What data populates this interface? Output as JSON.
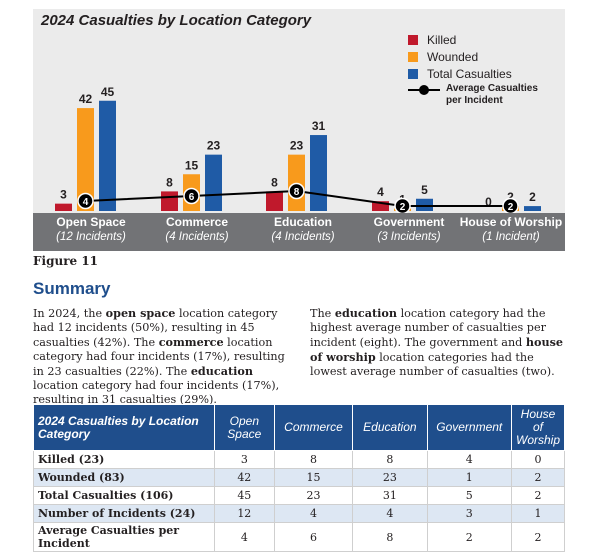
{
  "chart_data": {
    "type": "bar",
    "title": "2024 Casualties by Location Category",
    "categories": [
      "Open Space",
      "Commerce",
      "Education",
      "Government",
      "House of Worship"
    ],
    "category_subtitles": [
      "(12 Incidents)",
      "(4 Incidents)",
      "(4 Incidents)",
      "(3 Incidents)",
      "(1 Incident)"
    ],
    "series": [
      {
        "name": "Killed",
        "values": [
          3,
          8,
          8,
          4,
          0
        ],
        "color": "#c0192c"
      },
      {
        "name": "Wounded",
        "values": [
          42,
          15,
          23,
          1,
          2
        ],
        "color": "#f89a1c"
      },
      {
        "name": "Total Casualties",
        "values": [
          45,
          23,
          31,
          5,
          2
        ],
        "color": "#1f5ba6"
      }
    ],
    "line_series": {
      "name": "Average Casualties per Incident",
      "values": [
        4,
        6,
        8,
        2,
        2
      ],
      "color": "#000000"
    },
    "legend_position": "top-right"
  },
  "figure_label": "Figure 11",
  "summary": {
    "heading": "Summary",
    "left_paragraph": "In 2024, the open space location category had 12 incidents (50%), resulting in 45 casualties (42%). The commerce location category had four incidents (17%), resulting in 23 casualties (22%). The education location category had four incidents (17%), resulting in 31 casualties (29%).",
    "right_paragraph": "The education location category had the highest average number of casualties per incident (eight). The government and house of worship location categories had the lowest average number of casualties (two)."
  },
  "table": {
    "headers": [
      "2024 Casualties by Location Category",
      "Open Space",
      "Commerce",
      "Education",
      "Government",
      "House of Worship"
    ],
    "rows": [
      {
        "label": "Killed (23)",
        "values": [
          "3",
          "8",
          "8",
          "4",
          "0"
        ]
      },
      {
        "label": "Wounded (83)",
        "values": [
          "42",
          "15",
          "23",
          "1",
          "2"
        ]
      },
      {
        "label": "Total Casualties (106)",
        "values": [
          "45",
          "23",
          "31",
          "5",
          "2"
        ]
      },
      {
        "label": "Number of Incidents (24)",
        "values": [
          "12",
          "4",
          "4",
          "3",
          "1"
        ]
      },
      {
        "label": "Average Casualties per Incident",
        "values": [
          "4",
          "6",
          "8",
          "2",
          "2"
        ]
      }
    ]
  }
}
